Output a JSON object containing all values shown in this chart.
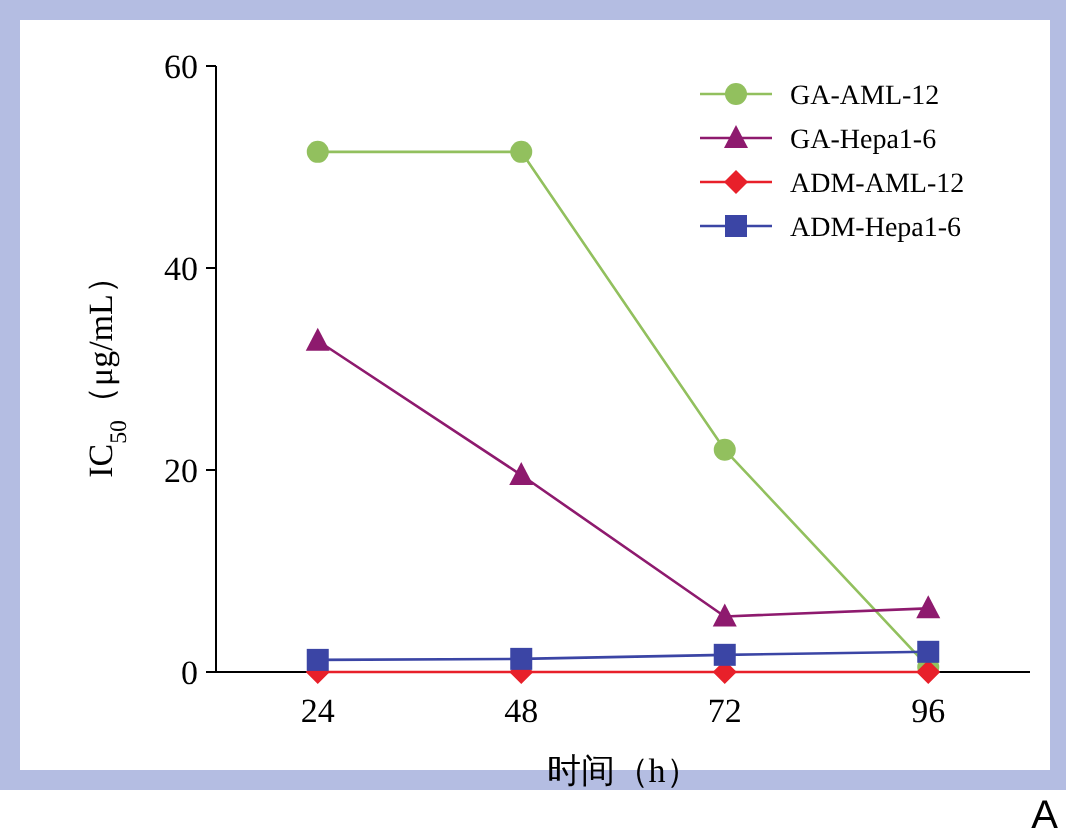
{
  "chart_data": {
    "type": "line",
    "xlabel": "时间（h）",
    "ylabel": "IC$_{50}$（μg/mL）",
    "x": [
      24,
      48,
      72,
      96
    ],
    "xlim": [
      12,
      108
    ],
    "xticks": [
      24,
      48,
      72,
      96
    ],
    "ylim": [
      0,
      60
    ],
    "yticks": [
      0,
      20,
      40,
      60
    ],
    "grid": false,
    "legend": "top right",
    "annotations": [
      "A"
    ],
    "series": [
      {
        "name": "GA-AML-12",
        "color": "#92c05e",
        "marker": "circle",
        "values": [
          51.5,
          51.5,
          22,
          0.5
        ]
      },
      {
        "name": "GA-Hepa1-6",
        "color": "#8e1a6e",
        "marker": "triangle",
        "values": [
          32.8,
          19.5,
          5.5,
          6.3
        ]
      },
      {
        "name": "ADM-AML-12",
        "color": "#e8202a",
        "marker": "diamond",
        "values": [
          0,
          0,
          0,
          0
        ]
      },
      {
        "name": "ADM-Hepa1-6",
        "color": "#3b45a5",
        "marker": "square",
        "values": [
          1.2,
          1.3,
          1.7,
          2.0
        ]
      }
    ]
  }
}
